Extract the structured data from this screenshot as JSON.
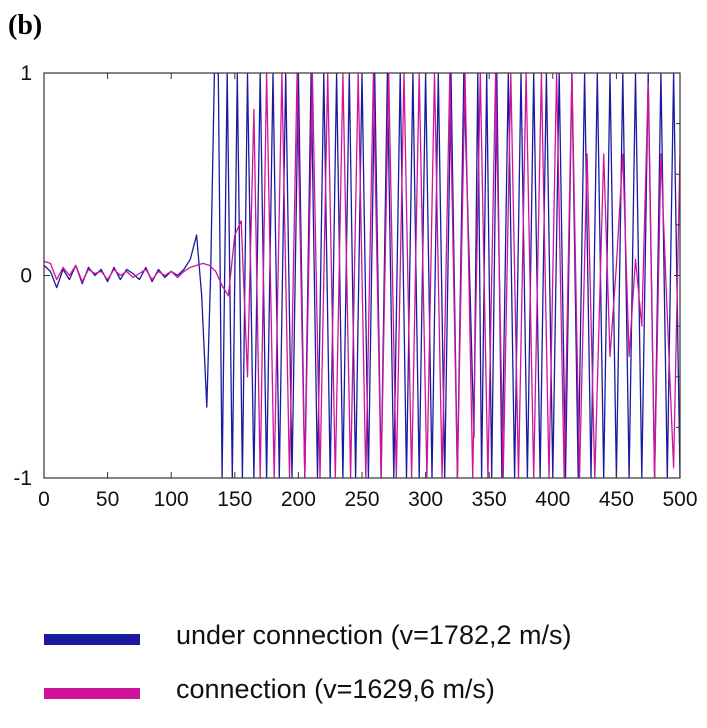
{
  "panel_label": "(b)",
  "colors": {
    "under_connection": "#1a1a9e",
    "connection": "#d0149a"
  },
  "legend": [
    {
      "label": "under connection (v=1782,2 m/s)",
      "color": "#1a1a9e"
    },
    {
      "label": "connection (v=1629,6 m/s)",
      "color": "#d0149a"
    }
  ],
  "chart_data": {
    "type": "line",
    "title": "",
    "xlabel": "",
    "ylabel": "",
    "xlim": [
      0,
      500
    ],
    "ylim": [
      -1,
      1
    ],
    "xticks": [
      0,
      50,
      100,
      150,
      200,
      250,
      300,
      350,
      400,
      450,
      500
    ],
    "yticks": [
      -1,
      0,
      1
    ],
    "grid": false,
    "legend_position": "bottom",
    "series": [
      {
        "name": "under connection (v=1782,2 m/s)",
        "color": "#1a1a9e",
        "x": [
          0,
          5,
          10,
          15,
          20,
          25,
          30,
          35,
          40,
          45,
          50,
          55,
          60,
          65,
          70,
          75,
          80,
          85,
          90,
          95,
          100,
          105,
          110,
          115,
          120,
          124,
          128,
          131,
          134,
          137,
          140,
          144,
          148,
          152,
          156,
          160,
          165,
          170,
          175,
          180,
          185,
          190,
          195,
          200,
          205,
          210,
          215,
          220,
          225,
          230,
          235,
          240,
          245,
          250,
          255,
          260,
          265,
          270,
          275,
          280,
          285,
          290,
          295,
          300,
          305,
          310,
          315,
          320,
          325,
          330,
          335,
          338,
          341,
          344,
          348,
          352,
          356,
          360,
          365,
          370,
          375,
          380,
          385,
          390,
          395,
          400,
          405,
          410,
          415,
          420,
          425,
          430,
          435,
          440,
          445,
          450,
          455,
          460,
          465,
          470,
          475,
          480,
          485,
          490,
          495,
          500
        ],
        "y": [
          0.05,
          0.02,
          -0.06,
          0.03,
          -0.02,
          0.05,
          -0.04,
          0.04,
          0.0,
          0.03,
          -0.03,
          0.04,
          -0.02,
          0.03,
          0.01,
          -0.02,
          0.04,
          -0.03,
          0.03,
          -0.01,
          0.02,
          0.0,
          0.03,
          0.08,
          0.2,
          -0.1,
          -0.65,
          0.0,
          1.0,
          1.0,
          -1.0,
          1.0,
          -1.0,
          1.0,
          -1.0,
          1.0,
          -1.0,
          1.0,
          -1.0,
          1.0,
          -1.0,
          1.0,
          -1.0,
          1.0,
          -1.0,
          1.0,
          -1.0,
          1.0,
          -1.0,
          1.0,
          -1.0,
          1.0,
          -1.0,
          1.0,
          -1.0,
          1.0,
          -1.0,
          1.0,
          -1.0,
          1.0,
          -1.0,
          1.0,
          -1.0,
          1.0,
          -1.0,
          1.0,
          -1.0,
          1.0,
          -1.0,
          1.0,
          -0.08,
          -0.8,
          1.0,
          -1.0,
          1.0,
          -1.0,
          1.0,
          -1.0,
          1.0,
          -1.0,
          1.0,
          -1.0,
          1.0,
          -1.0,
          1.0,
          -1.0,
          1.0,
          -1.0,
          1.0,
          -1.0,
          1.0,
          -1.0,
          1.0,
          -1.0,
          1.0,
          -1.0,
          1.0,
          -1.0,
          1.0,
          -1.0,
          1.0,
          -1.0,
          1.0,
          -1.0,
          1.0,
          -1.0
        ]
      },
      {
        "name": "connection (v=1629,6 m/s)",
        "color": "#d0149a",
        "x": [
          0,
          5,
          10,
          15,
          20,
          25,
          30,
          35,
          40,
          45,
          50,
          55,
          60,
          65,
          70,
          75,
          80,
          85,
          90,
          95,
          100,
          105,
          110,
          115,
          120,
          125,
          130,
          135,
          140,
          145,
          150,
          155,
          160,
          165,
          170,
          175,
          181,
          187,
          193,
          199,
          205,
          211,
          217,
          223,
          229,
          235,
          241,
          247,
          253,
          259,
          265,
          271,
          277,
          283,
          289,
          295,
          301,
          307,
          313,
          319,
          325,
          331,
          337,
          343,
          349,
          355,
          361,
          367,
          373,
          379,
          385,
          391,
          397,
          403,
          409,
          415,
          421,
          427,
          433,
          440,
          445,
          450,
          455,
          460,
          465,
          470,
          475,
          480,
          485,
          490,
          495,
          500
        ],
        "y": [
          0.07,
          0.06,
          -0.02,
          0.04,
          0.0,
          0.05,
          -0.03,
          0.03,
          0.01,
          0.02,
          -0.02,
          0.03,
          0.0,
          0.02,
          -0.01,
          0.01,
          0.03,
          -0.02,
          0.02,
          0.0,
          0.02,
          -0.01,
          0.02,
          0.04,
          0.05,
          0.06,
          0.05,
          0.02,
          -0.05,
          -0.1,
          0.2,
          0.27,
          -0.5,
          0.82,
          -1.0,
          1.0,
          -1.0,
          1.0,
          -1.0,
          1.0,
          -1.0,
          1.0,
          -1.0,
          1.0,
          -1.0,
          1.0,
          -1.0,
          1.0,
          -1.0,
          1.0,
          -1.0,
          1.0,
          -1.0,
          1.0,
          -1.0,
          1.0,
          -1.0,
          1.0,
          -1.0,
          1.0,
          -1.0,
          1.0,
          -1.0,
          1.0,
          -1.0,
          1.0,
          -1.0,
          1.0,
          -1.0,
          1.0,
          -1.0,
          1.0,
          -1.0,
          1.0,
          -1.0,
          1.0,
          -1.0,
          0.6,
          -1.0,
          0.6,
          -0.4,
          0.05,
          0.6,
          -0.4,
          0.08,
          -0.25,
          0.95,
          -1.0,
          0.6,
          -0.2,
          -0.95,
          0.6
        ]
      }
    ]
  }
}
